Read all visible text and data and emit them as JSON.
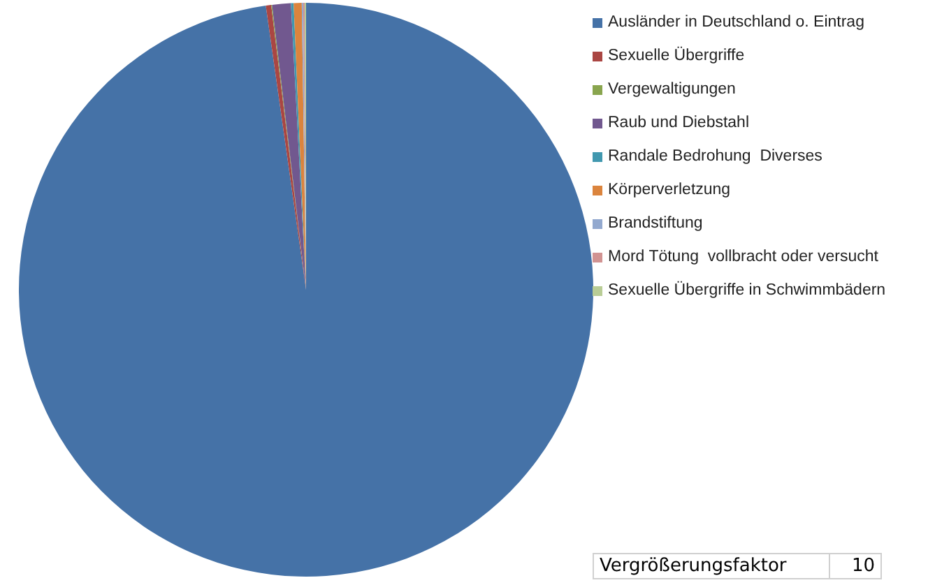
{
  "chart_data": {
    "type": "pie",
    "categories": [
      "Ausländer in Deutschland o. Eintrag",
      "Sexuelle Übergriffe",
      "Vergewaltigungen",
      "Raub und Diebstahl",
      "Randale Bedrohung  Diverses",
      "Körperverletzung",
      "Brandstiftung",
      "Mord Tötung  vollbracht oder versucht",
      "Sexuelle Übergriffe in Schwimmbädern"
    ],
    "values": [
      97.76,
      0.3,
      0.05,
      1.05,
      0.15,
      0.45,
      0.08,
      0.08,
      0.08
    ],
    "colors": [
      "#4572a7",
      "#aa4643",
      "#89a54e",
      "#71588f",
      "#4198af",
      "#db843d",
      "#93a9cf",
      "#d19392",
      "#b9cd96"
    ],
    "legend": "top right",
    "annotations": [
      "Vergrößerungsfaktor",
      "10"
    ]
  }
}
